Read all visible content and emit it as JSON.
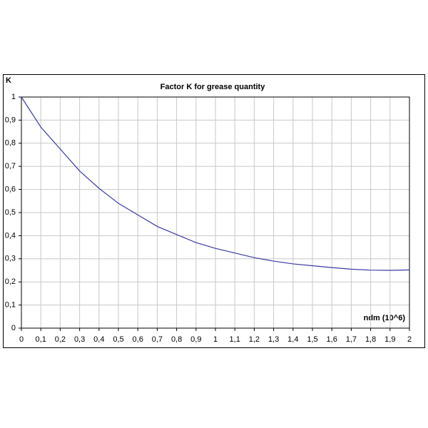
{
  "chart_data": {
    "type": "line",
    "title": "Factor K for grease quantity",
    "y_label": "K",
    "x_label": "ndm (10^6)",
    "x": [
      0,
      0.1,
      0.2,
      0.3,
      0.4,
      0.5,
      0.6,
      0.7,
      0.8,
      0.9,
      1,
      1.1,
      1.2,
      1.3,
      1.4,
      1.5,
      1.6,
      1.7,
      1.8,
      1.9,
      2
    ],
    "series": [
      {
        "name": "K",
        "color": "#3a3aa8",
        "values": [
          1,
          0.87,
          0.775,
          0.68,
          0.605,
          0.54,
          0.49,
          0.44,
          0.405,
          0.37,
          0.345,
          0.325,
          0.305,
          0.29,
          0.278,
          0.27,
          0.262,
          0.255,
          0.251,
          0.25,
          0.252
        ]
      }
    ],
    "xlim": [
      0,
      2
    ],
    "xticks": [
      0,
      {
        "value": 0.1,
        "label": "0,1"
      },
      {
        "value": 0.2,
        "label": "0,2"
      },
      {
        "value": 0.3,
        "label": "0,3"
      },
      {
        "value": 0.4,
        "label": "0,4"
      },
      {
        "value": 0.5,
        "label": "0,5"
      },
      {
        "value": 0.6,
        "label": "0,6"
      },
      {
        "value": 0.7,
        "label": "0,7"
      },
      {
        "value": 0.8,
        "label": "0,8"
      },
      {
        "value": 0.9,
        "label": "0,9"
      },
      1,
      {
        "value": 1.1,
        "label": "1,1"
      },
      {
        "value": 1.2,
        "label": "1,2"
      },
      {
        "value": 1.3,
        "label": "1,3"
      },
      {
        "value": 1.4,
        "label": "1,4"
      },
      {
        "value": 1.5,
        "label": "1,5"
      },
      {
        "value": 1.6,
        "label": "1,6"
      },
      {
        "value": 1.7,
        "label": "1,7"
      },
      {
        "value": 1.8,
        "label": "1,8"
      },
      {
        "value": 1.9,
        "label": "1,9"
      },
      2
    ],
    "ylim": [
      0,
      1
    ],
    "yticks": [
      0,
      {
        "value": 0.1,
        "label": "0,1"
      },
      {
        "value": 0.2,
        "label": "0,2"
      },
      {
        "value": 0.3,
        "label": "0,3"
      },
      {
        "value": 0.4,
        "label": "0,4"
      },
      {
        "value": 0.5,
        "label": "0,5"
      },
      {
        "value": 0.6,
        "label": "0,6"
      },
      {
        "value": 0.7,
        "label": "0,7"
      },
      {
        "value": 0.8,
        "label": "0,8"
      },
      {
        "value": 0.9,
        "label": "0,9"
      },
      1
    ],
    "grid": true,
    "grid_color": "#c8c8c8"
  }
}
